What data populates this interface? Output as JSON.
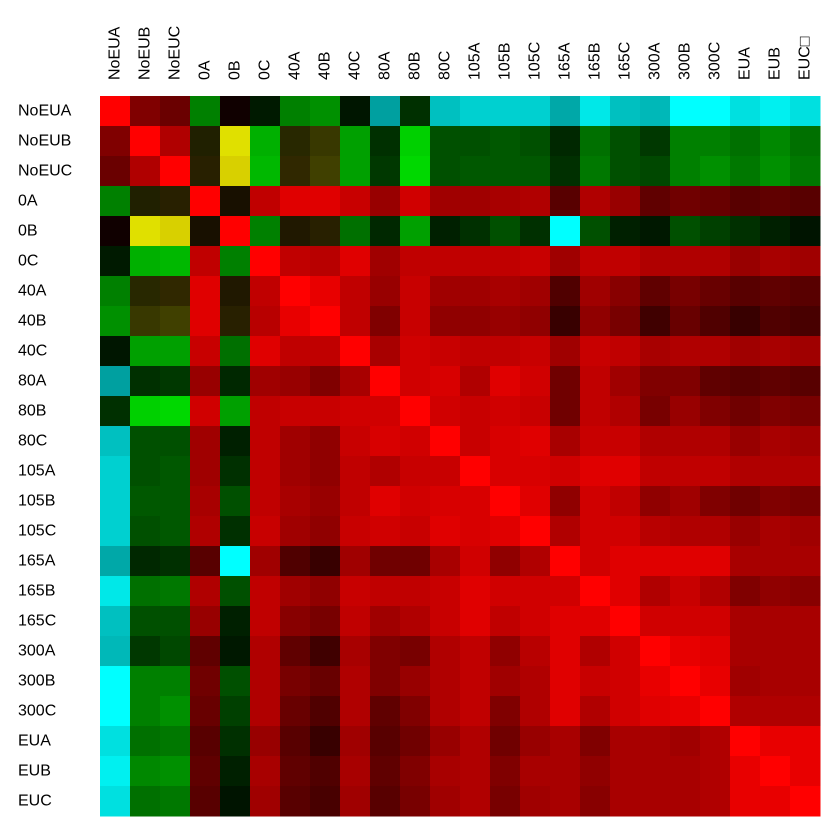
{
  "chart_data": {
    "type": "heatmap",
    "title": "",
    "xlabel": "",
    "ylabel": "",
    "legend": "none",
    "grid": false,
    "x_label_position": "top",
    "x_label_rotation": "vertical",
    "y_label_position": "left",
    "labels": [
      "NoEUA",
      "NoEUB",
      "NoEUC",
      "0A",
      "0B",
      "0C",
      "40A",
      "40B",
      "40C",
      "80A",
      "80B",
      "80C",
      "105A",
      "105B",
      "105C",
      "165A",
      "165B",
      "165C",
      "300A",
      "300B",
      "300C",
      "EUA",
      "EUB",
      "EUC"
    ],
    "x_labels": [
      "NoEUA",
      "NoEUB",
      "NoEUC",
      "0A",
      "0B",
      "0C",
      "40A",
      "40B",
      "40C",
      "80A",
      "80B",
      "80C",
      "105A",
      "105B",
      "105C",
      "165A",
      "165B",
      "165C",
      "300A",
      "300B",
      "300C",
      "EUA",
      "EUB",
      "EUC□"
    ],
    "color_scale": "cyan-green-black-red",
    "cell_colors": [
      [
        "#ff0000",
        "#800000",
        "#6a0000",
        "#008000",
        "#100000",
        "#001a00",
        "#008000",
        "#009000",
        "#001600",
        "#00a0a0",
        "#003000",
        "#00c0c0",
        "#00d0d0",
        "#00d0d0",
        "#00d0d0",
        "#00a8a8",
        "#00e8e8",
        "#00c0c0",
        "#00b8b8",
        "#00ffff",
        "#00ffff",
        "#00e0e0",
        "#00f0f0",
        "#00e0e0"
      ],
      [
        "#800000",
        "#ff0000",
        "#b00000",
        "#202000",
        "#e0e000",
        "#00b000",
        "#282800",
        "#383800",
        "#00a000",
        "#003000",
        "#00d000",
        "#005000",
        "#005000",
        "#005800",
        "#005000",
        "#002800",
        "#007000",
        "#005000",
        "#003800",
        "#008000",
        "#008000",
        "#007000",
        "#008800",
        "#007000"
      ],
      [
        "#6a0000",
        "#b00000",
        "#ff0000",
        "#282000",
        "#d8d000",
        "#00b800",
        "#302800",
        "#404000",
        "#00a000",
        "#003800",
        "#00d800",
        "#005000",
        "#005800",
        "#005800",
        "#005800",
        "#003000",
        "#007800",
        "#005000",
        "#004800",
        "#008000",
        "#009000",
        "#007800",
        "#009000",
        "#007800"
      ],
      [
        "#008000",
        "#202000",
        "#282000",
        "#ff0000",
        "#181000",
        "#c00000",
        "#e00000",
        "#e00000",
        "#c80000",
        "#980000",
        "#d00000",
        "#a00000",
        "#a00000",
        "#a80000",
        "#b00000",
        "#580000",
        "#b00000",
        "#980000",
        "#600000",
        "#700000",
        "#680000",
        "#580000",
        "#600000",
        "#580000"
      ],
      [
        "#100000",
        "#e0e000",
        "#d8d000",
        "#181000",
        "#ff0000",
        "#008000",
        "#201800",
        "#282000",
        "#007000",
        "#002800",
        "#00a000",
        "#002000",
        "#003000",
        "#005000",
        "#003000",
        "#00ffff",
        "#005000",
        "#002000",
        "#001800",
        "#005000",
        "#004000",
        "#003000",
        "#002000",
        "#001400"
      ],
      [
        "#001a00",
        "#00b000",
        "#00b800",
        "#c00000",
        "#008000",
        "#ff0000",
        "#c00000",
        "#b80000",
        "#e00000",
        "#a00000",
        "#c00000",
        "#c00000",
        "#c00000",
        "#c00000",
        "#c80000",
        "#a00000",
        "#c00000",
        "#c00000",
        "#b00000",
        "#b00000",
        "#b00000",
        "#980000",
        "#a80000",
        "#a00000"
      ],
      [
        "#008000",
        "#282800",
        "#302800",
        "#e00000",
        "#201800",
        "#c00000",
        "#ff0000",
        "#e80000",
        "#c00000",
        "#980000",
        "#c80000",
        "#a00000",
        "#a00000",
        "#a80000",
        "#a00000",
        "#500000",
        "#a00000",
        "#880000",
        "#600000",
        "#780000",
        "#680000",
        "#580000",
        "#600000",
        "#580000"
      ],
      [
        "#009000",
        "#383800",
        "#404000",
        "#e00000",
        "#282000",
        "#b80000",
        "#e80000",
        "#ff0000",
        "#c00000",
        "#800000",
        "#c80000",
        "#900000",
        "#900000",
        "#980000",
        "#900000",
        "#380000",
        "#900000",
        "#780000",
        "#400000",
        "#680000",
        "#500000",
        "#380000",
        "#500000",
        "#480000"
      ],
      [
        "#001600",
        "#00a000",
        "#00a000",
        "#c80000",
        "#007000",
        "#e00000",
        "#c00000",
        "#c00000",
        "#ff0000",
        "#a80000",
        "#d00000",
        "#c80000",
        "#c00000",
        "#c00000",
        "#c80000",
        "#a00000",
        "#c80000",
        "#c00000",
        "#a80000",
        "#b00000",
        "#b00000",
        "#a00000",
        "#a80000",
        "#a00000"
      ],
      [
        "#00a0a0",
        "#003000",
        "#003800",
        "#980000",
        "#002800",
        "#a00000",
        "#980000",
        "#800000",
        "#a80000",
        "#ff0000",
        "#d00000",
        "#d80000",
        "#b00000",
        "#e00000",
        "#d00000",
        "#700000",
        "#c00000",
        "#a00000",
        "#800000",
        "#800000",
        "#600000",
        "#580000",
        "#600000",
        "#580000"
      ],
      [
        "#003000",
        "#00d000",
        "#00d800",
        "#d00000",
        "#00a000",
        "#c00000",
        "#c80000",
        "#c80000",
        "#d00000",
        "#d00000",
        "#ff0000",
        "#d00000",
        "#c80000",
        "#d00000",
        "#c80000",
        "#700000",
        "#c00000",
        "#b00000",
        "#780000",
        "#980000",
        "#800000",
        "#700000",
        "#800000",
        "#780000"
      ],
      [
        "#00c0c0",
        "#005000",
        "#005000",
        "#a00000",
        "#002000",
        "#c00000",
        "#a00000",
        "#900000",
        "#c80000",
        "#d80000",
        "#d00000",
        "#ff0000",
        "#c80000",
        "#d80000",
        "#e00000",
        "#a80000",
        "#c80000",
        "#c80000",
        "#b00000",
        "#b00000",
        "#b00000",
        "#980000",
        "#a80000",
        "#a00000"
      ],
      [
        "#00d0d0",
        "#005000",
        "#005800",
        "#a00000",
        "#003000",
        "#c00000",
        "#a00000",
        "#900000",
        "#c00000",
        "#b00000",
        "#c80000",
        "#c80000",
        "#ff0000",
        "#d80000",
        "#d80000",
        "#d00000",
        "#e00000",
        "#e00000",
        "#c00000",
        "#c00000",
        "#c00000",
        "#b00000",
        "#b00000",
        "#b00000"
      ],
      [
        "#00d0d0",
        "#005800",
        "#005800",
        "#a80000",
        "#005000",
        "#c00000",
        "#a80000",
        "#980000",
        "#c00000",
        "#e00000",
        "#d00000",
        "#d80000",
        "#d80000",
        "#ff0000",
        "#e00000",
        "#900000",
        "#d00000",
        "#c00000",
        "#900000",
        "#a00000",
        "#800000",
        "#700000",
        "#800000",
        "#780000"
      ],
      [
        "#00d0d0",
        "#005000",
        "#005800",
        "#b00000",
        "#003000",
        "#c80000",
        "#a00000",
        "#900000",
        "#c80000",
        "#d00000",
        "#c80000",
        "#e00000",
        "#d80000",
        "#e00000",
        "#ff0000",
        "#b00000",
        "#d00000",
        "#d00000",
        "#b80000",
        "#b00000",
        "#b00000",
        "#980000",
        "#a80000",
        "#a00000"
      ],
      [
        "#00a8a8",
        "#002800",
        "#003000",
        "#580000",
        "#00ffff",
        "#a00000",
        "#500000",
        "#380000",
        "#a00000",
        "#700000",
        "#700000",
        "#a80000",
        "#d00000",
        "#900000",
        "#b00000",
        "#ff0000",
        "#d00000",
        "#e00000",
        "#e00000",
        "#e00000",
        "#e00000",
        "#a80000",
        "#a80000",
        "#a80000"
      ],
      [
        "#00e8e8",
        "#007000",
        "#007800",
        "#b00000",
        "#005000",
        "#c00000",
        "#a00000",
        "#900000",
        "#c80000",
        "#c00000",
        "#c00000",
        "#c80000",
        "#e00000",
        "#d00000",
        "#d00000",
        "#d00000",
        "#ff0000",
        "#e00000",
        "#b00000",
        "#c80000",
        "#b00000",
        "#800000",
        "#900000",
        "#880000"
      ],
      [
        "#00c0c0",
        "#005000",
        "#005000",
        "#980000",
        "#002000",
        "#c00000",
        "#880000",
        "#780000",
        "#c00000",
        "#a00000",
        "#b00000",
        "#c80000",
        "#e00000",
        "#c00000",
        "#d00000",
        "#e00000",
        "#e00000",
        "#ff0000",
        "#d00000",
        "#d00000",
        "#d00000",
        "#a80000",
        "#a80000",
        "#a80000"
      ],
      [
        "#00b8b8",
        "#003800",
        "#004800",
        "#600000",
        "#001800",
        "#b00000",
        "#600000",
        "#400000",
        "#a80000",
        "#800000",
        "#780000",
        "#b00000",
        "#c00000",
        "#900000",
        "#b80000",
        "#e00000",
        "#b00000",
        "#d00000",
        "#ff0000",
        "#e80000",
        "#e00000",
        "#a80000",
        "#a80000",
        "#a80000"
      ],
      [
        "#00ffff",
        "#008000",
        "#008000",
        "#700000",
        "#005000",
        "#b00000",
        "#780000",
        "#680000",
        "#b00000",
        "#800000",
        "#980000",
        "#b00000",
        "#c00000",
        "#a00000",
        "#b00000",
        "#e00000",
        "#c80000",
        "#d00000",
        "#e80000",
        "#ff0000",
        "#e80000",
        "#a00000",
        "#a80000",
        "#a80000"
      ],
      [
        "#00ffff",
        "#008000",
        "#009000",
        "#680000",
        "#004000",
        "#b00000",
        "#680000",
        "#500000",
        "#b00000",
        "#600000",
        "#800000",
        "#b00000",
        "#c00000",
        "#800000",
        "#b00000",
        "#e00000",
        "#b00000",
        "#d00000",
        "#e00000",
        "#e80000",
        "#ff0000",
        "#b00000",
        "#b00000",
        "#b00000"
      ],
      [
        "#00e0e0",
        "#007000",
        "#007800",
        "#580000",
        "#003000",
        "#980000",
        "#580000",
        "#380000",
        "#a00000",
        "#580000",
        "#700000",
        "#980000",
        "#b00000",
        "#700000",
        "#980000",
        "#a80000",
        "#800000",
        "#a80000",
        "#a80000",
        "#a00000",
        "#b00000",
        "#ff0000",
        "#e80000",
        "#e80000"
      ],
      [
        "#00f0f0",
        "#008800",
        "#009000",
        "#600000",
        "#002000",
        "#a80000",
        "#600000",
        "#500000",
        "#a80000",
        "#600000",
        "#800000",
        "#a80000",
        "#b00000",
        "#800000",
        "#a80000",
        "#a80000",
        "#900000",
        "#a80000",
        "#a80000",
        "#a80000",
        "#b00000",
        "#e80000",
        "#ff0000",
        "#e80000"
      ],
      [
        "#00e0e0",
        "#007000",
        "#007800",
        "#580000",
        "#001400",
        "#a00000",
        "#580000",
        "#480000",
        "#a00000",
        "#580000",
        "#780000",
        "#a00000",
        "#b00000",
        "#780000",
        "#a00000",
        "#a80000",
        "#880000",
        "#a80000",
        "#a80000",
        "#a80000",
        "#b00000",
        "#e80000",
        "#e80000",
        "#ff0000"
      ]
    ]
  }
}
